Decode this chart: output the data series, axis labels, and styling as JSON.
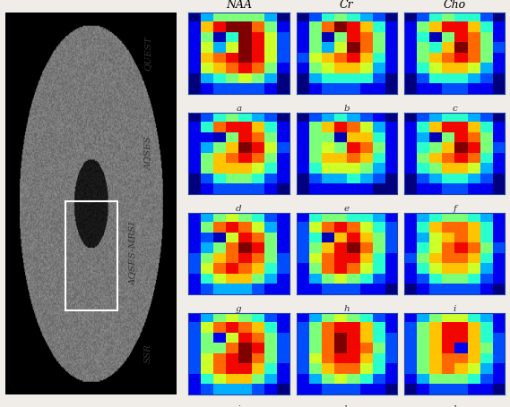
{
  "col_labels": [
    "NAA",
    "Cr",
    "Cho"
  ],
  "row_labels": [
    "QUEST",
    "AQSES",
    "AQSES-MRSI",
    "SSR"
  ],
  "subplot_labels": [
    [
      "a",
      "b",
      "c"
    ],
    [
      "d",
      "e",
      "f"
    ],
    [
      "g",
      "h",
      "i"
    ],
    [
      "j",
      "k",
      "l"
    ]
  ],
  "background_color": "#f0ede8",
  "maps": {
    "QUEST_NAA": [
      [
        0.0,
        0.3,
        0.5,
        0.5,
        0.5,
        0.5,
        0.3,
        0.0
      ],
      [
        0.1,
        0.7,
        0.9,
        1.0,
        1.0,
        0.8,
        0.5,
        0.1
      ],
      [
        0.1,
        0.5,
        0.05,
        0.4,
        1.0,
        0.9,
        0.6,
        0.2
      ],
      [
        0.1,
        0.6,
        0.3,
        0.6,
        1.0,
        0.9,
        0.6,
        0.2
      ],
      [
        0.1,
        0.7,
        0.8,
        0.9,
        1.0,
        0.9,
        0.6,
        0.2
      ],
      [
        0.1,
        0.6,
        0.7,
        0.8,
        0.9,
        0.8,
        0.5,
        0.1
      ],
      [
        0.0,
        0.3,
        0.4,
        0.5,
        0.6,
        0.5,
        0.3,
        0.0
      ],
      [
        0.0,
        0.1,
        0.2,
        0.2,
        0.2,
        0.2,
        0.1,
        0.0
      ]
    ],
    "QUEST_Cr": [
      [
        0.0,
        0.2,
        0.4,
        0.5,
        0.4,
        0.3,
        0.2,
        0.0
      ],
      [
        0.1,
        0.5,
        0.8,
        1.0,
        0.9,
        0.7,
        0.4,
        0.1
      ],
      [
        0.1,
        0.5,
        0.05,
        0.5,
        0.9,
        0.8,
        0.5,
        0.1
      ],
      [
        0.1,
        0.5,
        0.3,
        0.6,
        1.0,
        0.8,
        0.5,
        0.1
      ],
      [
        0.2,
        0.6,
        0.7,
        0.8,
        0.9,
        0.7,
        0.4,
        0.1
      ],
      [
        0.1,
        0.5,
        0.6,
        0.7,
        0.7,
        0.6,
        0.3,
        0.1
      ],
      [
        0.0,
        0.3,
        0.4,
        0.4,
        0.4,
        0.4,
        0.2,
        0.0
      ],
      [
        0.0,
        0.1,
        0.2,
        0.2,
        0.2,
        0.1,
        0.1,
        0.0
      ]
    ],
    "QUEST_Cho": [
      [
        0.0,
        0.2,
        0.4,
        0.5,
        0.4,
        0.4,
        0.2,
        0.0
      ],
      [
        0.1,
        0.5,
        0.7,
        0.9,
        0.9,
        0.7,
        0.4,
        0.1
      ],
      [
        0.1,
        0.4,
        0.05,
        0.5,
        0.9,
        0.8,
        0.5,
        0.1
      ],
      [
        0.1,
        0.5,
        0.4,
        0.7,
        1.0,
        0.8,
        0.5,
        0.2
      ],
      [
        0.1,
        0.5,
        0.7,
        0.8,
        0.9,
        0.8,
        0.5,
        0.1
      ],
      [
        0.1,
        0.4,
        0.6,
        0.7,
        0.7,
        0.6,
        0.3,
        0.1
      ],
      [
        0.0,
        0.2,
        0.4,
        0.4,
        0.4,
        0.3,
        0.2,
        0.0
      ],
      [
        0.0,
        0.1,
        0.1,
        0.2,
        0.2,
        0.1,
        0.1,
        0.0
      ]
    ],
    "AQSES_NAA": [
      [
        0.0,
        0.2,
        0.4,
        0.5,
        0.4,
        0.3,
        0.2,
        0.0
      ],
      [
        0.1,
        0.4,
        0.8,
        0.9,
        0.9,
        0.7,
        0.4,
        0.1
      ],
      [
        0.1,
        0.1,
        0.05,
        0.5,
        0.9,
        0.8,
        0.5,
        0.1
      ],
      [
        0.1,
        0.3,
        0.5,
        0.7,
        1.0,
        0.9,
        0.6,
        0.2
      ],
      [
        0.1,
        0.5,
        0.7,
        0.8,
        0.9,
        0.8,
        0.5,
        0.1
      ],
      [
        0.1,
        0.5,
        0.7,
        0.7,
        0.7,
        0.6,
        0.4,
        0.1
      ],
      [
        0.0,
        0.2,
        0.4,
        0.5,
        0.5,
        0.4,
        0.2,
        0.1
      ],
      [
        0.0,
        0.1,
        0.2,
        0.2,
        0.2,
        0.2,
        0.1,
        0.0
      ]
    ],
    "AQSES_Cr": [
      [
        0.0,
        0.2,
        0.3,
        0.4,
        0.3,
        0.2,
        0.1,
        0.0
      ],
      [
        0.1,
        0.5,
        0.7,
        0.9,
        0.8,
        0.6,
        0.3,
        0.1
      ],
      [
        0.1,
        0.5,
        0.5,
        0.05,
        0.7,
        0.7,
        0.4,
        0.1
      ],
      [
        0.1,
        0.5,
        0.6,
        0.5,
        0.9,
        0.8,
        0.5,
        0.1
      ],
      [
        0.1,
        0.5,
        0.7,
        0.7,
        0.8,
        0.7,
        0.4,
        0.1
      ],
      [
        0.1,
        0.4,
        0.6,
        0.6,
        0.6,
        0.5,
        0.3,
        0.1
      ],
      [
        0.0,
        0.2,
        0.3,
        0.3,
        0.4,
        0.3,
        0.2,
        0.0
      ],
      [
        0.0,
        0.1,
        0.1,
        0.1,
        0.1,
        0.1,
        0.0,
        0.0
      ]
    ],
    "AQSES_Cho": [
      [
        0.0,
        0.2,
        0.3,
        0.4,
        0.4,
        0.3,
        0.2,
        0.0
      ],
      [
        0.1,
        0.4,
        0.7,
        0.9,
        0.9,
        0.7,
        0.4,
        0.1
      ],
      [
        0.1,
        0.3,
        0.05,
        0.5,
        0.9,
        0.8,
        0.5,
        0.1
      ],
      [
        0.1,
        0.4,
        0.5,
        0.7,
        1.0,
        0.9,
        0.5,
        0.2
      ],
      [
        0.1,
        0.5,
        0.7,
        0.8,
        0.9,
        0.8,
        0.4,
        0.1
      ],
      [
        0.1,
        0.4,
        0.5,
        0.7,
        0.7,
        0.6,
        0.3,
        0.1
      ],
      [
        0.0,
        0.2,
        0.3,
        0.4,
        0.4,
        0.3,
        0.2,
        0.0
      ],
      [
        0.0,
        0.1,
        0.1,
        0.2,
        0.2,
        0.1,
        0.1,
        0.0
      ]
    ],
    "AQSES_MRSI_NAA": [
      [
        0.1,
        0.3,
        0.5,
        0.6,
        0.5,
        0.4,
        0.2,
        0.1
      ],
      [
        0.1,
        0.5,
        0.8,
        0.9,
        0.8,
        0.6,
        0.3,
        0.1
      ],
      [
        0.1,
        0.2,
        0.05,
        0.6,
        0.9,
        0.8,
        0.5,
        0.1
      ],
      [
        0.1,
        0.3,
        0.5,
        0.8,
        1.0,
        0.9,
        0.5,
        0.1
      ],
      [
        0.2,
        0.5,
        0.7,
        0.8,
        0.9,
        0.8,
        0.5,
        0.2
      ],
      [
        0.2,
        0.6,
        0.8,
        0.9,
        0.8,
        0.7,
        0.4,
        0.2
      ],
      [
        0.1,
        0.4,
        0.6,
        0.7,
        0.7,
        0.5,
        0.3,
        0.1
      ],
      [
        0.1,
        0.2,
        0.3,
        0.3,
        0.3,
        0.2,
        0.1,
        0.1
      ]
    ],
    "AQSES_MRSI_Cr": [
      [
        0.1,
        0.4,
        0.5,
        0.5,
        0.4,
        0.4,
        0.3,
        0.1
      ],
      [
        0.2,
        0.6,
        0.8,
        0.9,
        0.8,
        0.6,
        0.4,
        0.2
      ],
      [
        0.2,
        0.4,
        0.05,
        0.7,
        0.9,
        0.7,
        0.5,
        0.2
      ],
      [
        0.2,
        0.5,
        0.7,
        0.9,
        1.0,
        0.8,
        0.5,
        0.2
      ],
      [
        0.2,
        0.6,
        0.8,
        0.9,
        0.9,
        0.7,
        0.4,
        0.1
      ],
      [
        0.1,
        0.5,
        0.8,
        0.9,
        0.8,
        0.6,
        0.4,
        0.1
      ],
      [
        0.1,
        0.3,
        0.5,
        0.6,
        0.5,
        0.4,
        0.2,
        0.1
      ],
      [
        0.1,
        0.1,
        0.2,
        0.2,
        0.2,
        0.1,
        0.1,
        0.0
      ]
    ],
    "AQSES_MRSI_Cho": [
      [
        0.1,
        0.3,
        0.4,
        0.5,
        0.5,
        0.4,
        0.3,
        0.1
      ],
      [
        0.1,
        0.4,
        0.7,
        0.8,
        0.8,
        0.7,
        0.4,
        0.1
      ],
      [
        0.1,
        0.3,
        0.6,
        0.7,
        0.8,
        0.7,
        0.4,
        0.1
      ],
      [
        0.1,
        0.4,
        0.6,
        0.8,
        0.9,
        0.8,
        0.5,
        0.2
      ],
      [
        0.2,
        0.5,
        0.7,
        0.8,
        0.8,
        0.7,
        0.4,
        0.1
      ],
      [
        0.1,
        0.4,
        0.6,
        0.7,
        0.7,
        0.6,
        0.3,
        0.1
      ],
      [
        0.1,
        0.2,
        0.4,
        0.5,
        0.5,
        0.4,
        0.2,
        0.1
      ],
      [
        0.0,
        0.1,
        0.2,
        0.2,
        0.2,
        0.2,
        0.1,
        0.0
      ]
    ],
    "SSR_NAA": [
      [
        0.1,
        0.3,
        0.5,
        0.6,
        0.5,
        0.4,
        0.2,
        0.1
      ],
      [
        0.2,
        0.6,
        0.8,
        0.9,
        0.8,
        0.7,
        0.4,
        0.1
      ],
      [
        0.2,
        0.5,
        0.1,
        0.6,
        0.9,
        0.8,
        0.5,
        0.2
      ],
      [
        0.2,
        0.5,
        0.5,
        0.8,
        1.0,
        0.9,
        0.5,
        0.2
      ],
      [
        0.2,
        0.6,
        0.8,
        0.9,
        1.0,
        0.8,
        0.5,
        0.2
      ],
      [
        0.2,
        0.6,
        0.8,
        0.9,
        0.9,
        0.7,
        0.4,
        0.1
      ],
      [
        0.1,
        0.4,
        0.6,
        0.7,
        0.7,
        0.5,
        0.3,
        0.1
      ],
      [
        0.1,
        0.2,
        0.3,
        0.3,
        0.3,
        0.2,
        0.1,
        0.0
      ]
    ],
    "SSR_Cr": [
      [
        0.1,
        0.3,
        0.5,
        0.6,
        0.5,
        0.4,
        0.2,
        0.1
      ],
      [
        0.2,
        0.5,
        0.8,
        0.9,
        0.9,
        0.7,
        0.4,
        0.1
      ],
      [
        0.2,
        0.5,
        0.8,
        1.0,
        0.9,
        0.7,
        0.4,
        0.2
      ],
      [
        0.2,
        0.5,
        0.8,
        1.0,
        0.9,
        0.8,
        0.5,
        0.2
      ],
      [
        0.2,
        0.6,
        0.8,
        0.9,
        0.9,
        0.7,
        0.4,
        0.2
      ],
      [
        0.2,
        0.5,
        0.7,
        0.8,
        0.8,
        0.6,
        0.4,
        0.1
      ],
      [
        0.1,
        0.3,
        0.5,
        0.6,
        0.5,
        0.4,
        0.2,
        0.1
      ],
      [
        0.1,
        0.1,
        0.2,
        0.2,
        0.2,
        0.1,
        0.1,
        0.0
      ]
    ],
    "SSR_Cho": [
      [
        0.1,
        0.3,
        0.5,
        0.6,
        0.6,
        0.4,
        0.3,
        0.1
      ],
      [
        0.2,
        0.5,
        0.7,
        0.9,
        0.9,
        0.7,
        0.4,
        0.1
      ],
      [
        0.2,
        0.5,
        0.7,
        0.9,
        0.9,
        0.7,
        0.4,
        0.2
      ],
      [
        0.2,
        0.5,
        0.7,
        0.9,
        0.1,
        0.7,
        0.5,
        0.2
      ],
      [
        0.2,
        0.5,
        0.7,
        0.8,
        0.8,
        0.7,
        0.4,
        0.2
      ],
      [
        0.2,
        0.5,
        0.7,
        0.8,
        0.7,
        0.6,
        0.3,
        0.1
      ],
      [
        0.1,
        0.3,
        0.5,
        0.5,
        0.5,
        0.4,
        0.2,
        0.1
      ],
      [
        0.0,
        0.1,
        0.2,
        0.2,
        0.2,
        0.1,
        0.1,
        0.0
      ]
    ]
  },
  "map_order": [
    [
      "QUEST_NAA",
      "QUEST_Cr",
      "QUEST_Cho"
    ],
    [
      "AQSES_NAA",
      "AQSES_Cr",
      "AQSES_Cho"
    ],
    [
      "AQSES_MRSI_NAA",
      "AQSES_MRSI_Cr",
      "AQSES_MRSI_Cho"
    ],
    [
      "SSR_NAA",
      "SSR_Cr",
      "SSR_Cho"
    ]
  ]
}
